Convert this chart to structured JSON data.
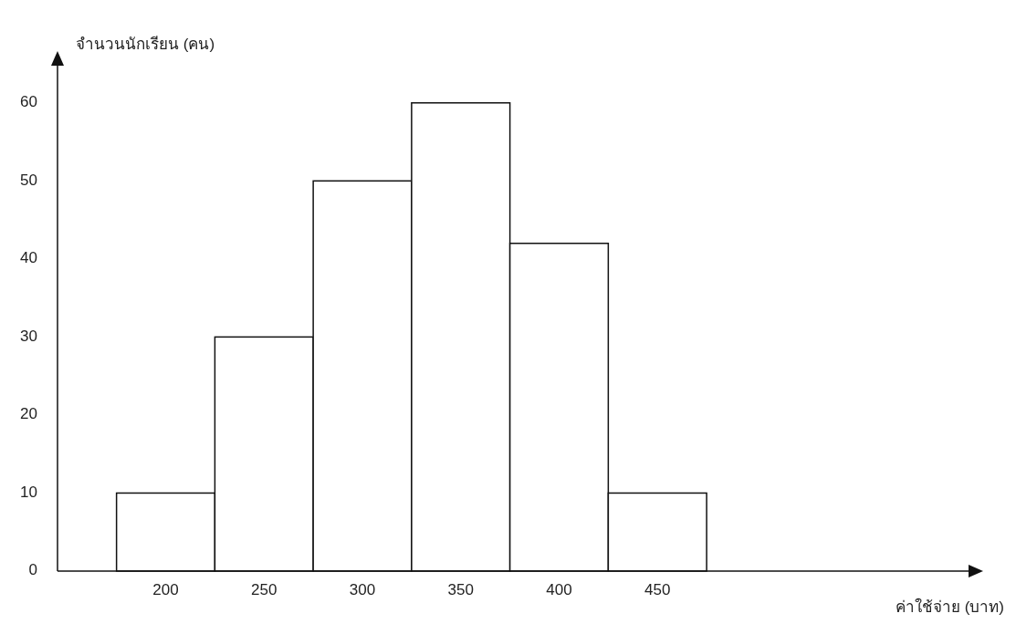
{
  "chart_data": {
    "type": "histogram",
    "xlabel": "ค่าใช้จ่าย (บาท)",
    "ylabel": "จำนวนนักเรียน (คน)",
    "bins": [
      175,
      225,
      275,
      325,
      375,
      425,
      475
    ],
    "values": [
      10,
      30,
      50,
      60,
      42,
      10
    ],
    "color": "#ffffff",
    "xlim": [
      145,
      610
    ],
    "xticks": [
      200,
      250,
      300,
      350,
      400,
      450
    ],
    "ylim": [
      0,
      65
    ],
    "yticks": [
      0,
      10,
      20,
      30,
      40,
      50,
      60
    ],
    "grid": false
  }
}
